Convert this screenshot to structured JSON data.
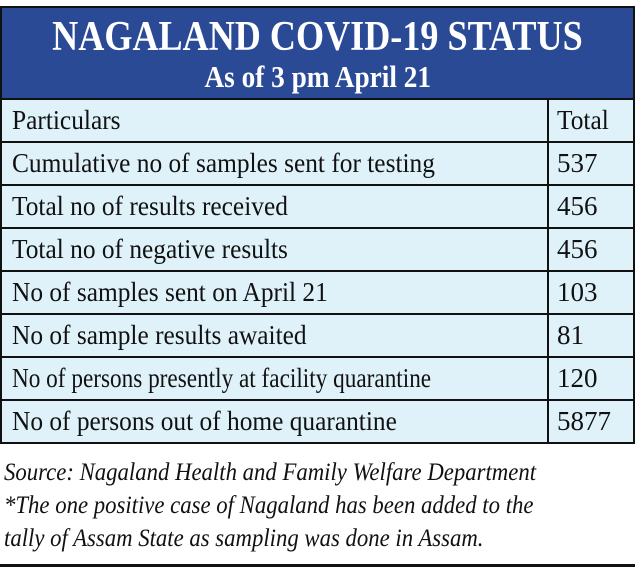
{
  "header": {
    "title": "NAGALAND COVID-19 STATUS",
    "subtitle": "As of 3 pm April 21",
    "background_color": "#2a4a96"
  },
  "table": {
    "columns": [
      "Particulars",
      "Total"
    ],
    "rows": [
      {
        "label": "Cumulative no of samples sent for testing",
        "value": "537"
      },
      {
        "label": "Total no of results received",
        "value": "456"
      },
      {
        "label": "Total no of negative results",
        "value": "456"
      },
      {
        "label": "No of samples sent on April 21",
        "value": "103"
      },
      {
        "label": "No of sample results awaited",
        "value": "81"
      },
      {
        "label": "No of persons presently at facility quarantine",
        "value": "120"
      },
      {
        "label": "No of persons out of home quarantine",
        "value": "5877"
      }
    ],
    "row_color": "#dff2fa"
  },
  "footer": {
    "source": "Source: Nagaland Health and Family Welfare Department",
    "note_line1": "*The one positive case of Nagaland has been added to the",
    "note_line2": "tally of Assam State as sampling was done in Assam."
  }
}
